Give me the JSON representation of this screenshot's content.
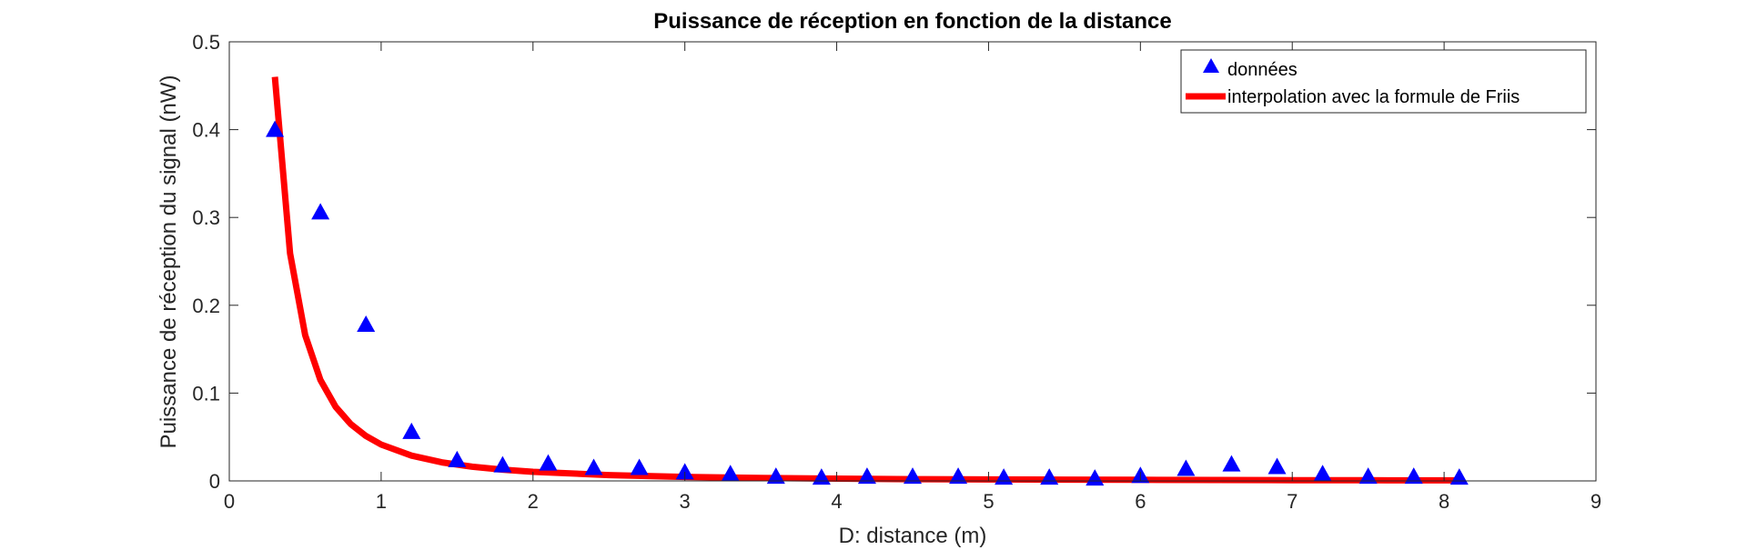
{
  "chart_data": {
    "type": "scatter",
    "title": "Puissance de réception en fonction de la distance",
    "xlabel": "D: distance (m)",
    "ylabel": "Puissance de réception du signal (nW)",
    "xlim": [
      0,
      9
    ],
    "ylim": [
      0,
      0.5
    ],
    "xticks": [
      "0",
      "1",
      "2",
      "3",
      "4",
      "5",
      "6",
      "7",
      "8",
      "9"
    ],
    "yticks": [
      "0",
      "0.1",
      "0.2",
      "0.3",
      "0.4",
      "0.5"
    ],
    "grid": false,
    "legend_position": "top-right",
    "series": [
      {
        "name": "données",
        "kind": "scatter",
        "marker": "triangle",
        "color": "#0000ff",
        "x": [
          0.3,
          0.6,
          0.9,
          1.2,
          1.5,
          1.8,
          2.1,
          2.4,
          2.7,
          3.0,
          3.3,
          3.6,
          3.9,
          4.2,
          4.5,
          4.8,
          5.1,
          5.4,
          5.7,
          6.0,
          6.3,
          6.6,
          6.9,
          7.2,
          7.5,
          7.8,
          8.1
        ],
        "y": [
          0.4,
          0.306,
          0.178,
          0.056,
          0.024,
          0.018,
          0.02,
          0.015,
          0.015,
          0.01,
          0.008,
          0.005,
          0.004,
          0.005,
          0.005,
          0.005,
          0.004,
          0.004,
          0.003,
          0.006,
          0.014,
          0.019,
          0.016,
          0.008,
          0.005,
          0.005,
          0.004
        ]
      },
      {
        "name": "interpolation avec la formule de Friis",
        "kind": "line",
        "color": "#ff0000",
        "x": [
          0.3,
          0.4,
          0.5,
          0.6,
          0.7,
          0.8,
          0.9,
          1.0,
          1.2,
          1.4,
          1.6,
          1.8,
          2.0,
          2.5,
          3.0,
          3.5,
          4.0,
          4.5,
          5.0,
          5.5,
          6.0,
          6.5,
          7.0,
          7.5,
          8.1
        ],
        "y": [
          0.46,
          0.259,
          0.166,
          0.115,
          0.0845,
          0.0647,
          0.0511,
          0.0414,
          0.0288,
          0.0211,
          0.0162,
          0.0128,
          0.0104,
          0.0066,
          0.0046,
          0.0034,
          0.0026,
          0.002,
          0.0017,
          0.0014,
          0.0012,
          0.001,
          0.0008,
          0.0007,
          0.0006
        ]
      }
    ]
  }
}
